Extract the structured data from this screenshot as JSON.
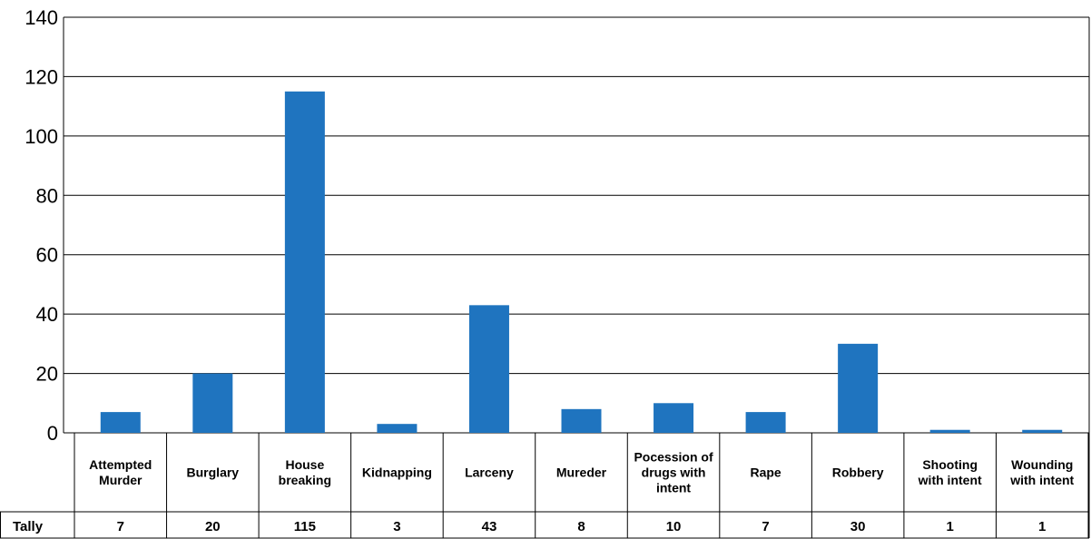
{
  "chart_data": {
    "type": "bar",
    "title": "",
    "xlabel": "",
    "ylabel": "",
    "ylim": [
      0,
      140
    ],
    "yticks": [
      0,
      20,
      40,
      60,
      80,
      100,
      120,
      140
    ],
    "grid": true,
    "categories": [
      "Attempted Murder",
      "Burglary",
      "House breaking",
      "Kidnapping",
      "Larceny",
      "Mureder",
      "Pocession of drugs with intent",
      "Rape",
      "Robbery",
      "Shooting with intent",
      "Wounding with intent"
    ],
    "category_lines": [
      [
        "Attempted",
        "Murder"
      ],
      [
        "Burglary"
      ],
      [
        "House",
        "breaking"
      ],
      [
        "Kidnapping"
      ],
      [
        "Larceny"
      ],
      [
        "Mureder"
      ],
      [
        "Pocession of",
        "drugs with",
        "intent"
      ],
      [
        "Rape"
      ],
      [
        "Robbery"
      ],
      [
        "Shooting",
        "with intent"
      ],
      [
        "Wounding",
        "with intent"
      ]
    ],
    "series": [
      {
        "name": "Tally",
        "color": "#1f74bf",
        "values": [
          7,
          20,
          115,
          3,
          43,
          8,
          10,
          7,
          30,
          1,
          1
        ]
      }
    ],
    "table": {
      "row_label": "Tally",
      "values": [
        "7",
        "20",
        "115",
        "3",
        "43",
        "8",
        "10",
        "7",
        "30",
        "1",
        "1"
      ]
    }
  }
}
